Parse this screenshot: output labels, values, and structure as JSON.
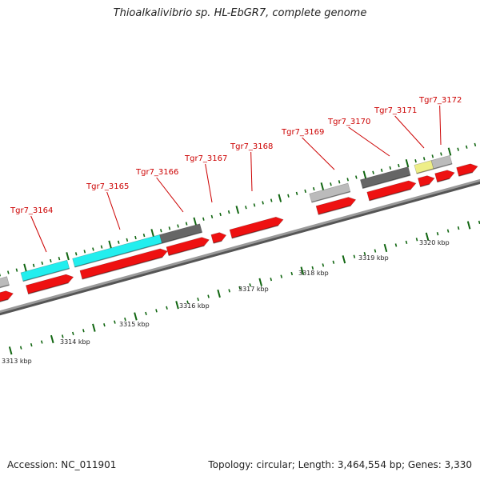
{
  "title": "Thioalkalivibrio sp. HL-EbGR7, complete genome",
  "footer": {
    "accession": "Accession: NC_011901",
    "topology": "Topology: circular; Length: 3,464,554 bp; Genes: 3,330"
  },
  "colors": {
    "gene_cds": "#ee1111",
    "gene_gray": "#bbbbbb",
    "gene_dark": "#666666",
    "gene_cyan": "#22eeee",
    "gene_yellow": "#eeee88",
    "backbone": "#888888",
    "tick": "#116611",
    "label": "#cc0000"
  },
  "scale_labels": [
    "3313 kbp",
    "3314 kbp",
    "3315 kbp",
    "3316 kbp",
    "3317 kbp",
    "3318 kbp",
    "3319 kbp",
    "3320 kbp"
  ],
  "gene_labels": [
    "Tgr7_3164",
    "Tgr7_3165",
    "Tgr7_3166",
    "Tgr7_3167",
    "Tgr7_3168",
    "Tgr7_3169",
    "Tgr7_3170",
    "Tgr7_3171",
    "Tgr7_3172"
  ]
}
